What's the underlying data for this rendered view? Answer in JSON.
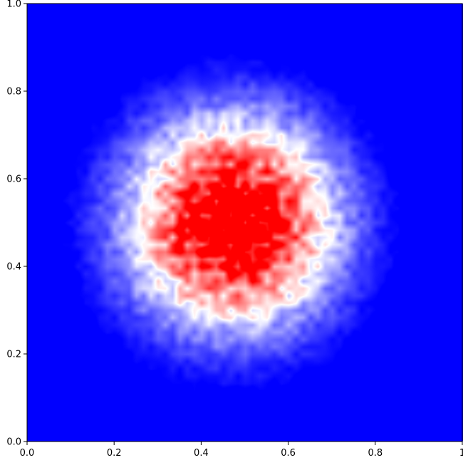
{
  "chart_data": {
    "type": "heatmap",
    "title": "",
    "xlabel": "",
    "ylabel": "",
    "xlim": [
      0,
      1
    ],
    "ylim": [
      0,
      1
    ],
    "x_ticks": [
      0.0,
      0.2,
      0.4,
      0.6,
      0.8,
      1.0
    ],
    "x_tick_labels": [
      "0.0",
      "0.2",
      "0.4",
      "0.6",
      "0.8",
      "1"
    ],
    "y_ticks": [
      0.0,
      0.2,
      0.4,
      0.6,
      0.8,
      1.0
    ],
    "y_tick_labels": [
      "0.0",
      "0.2",
      "0.4",
      "0.6",
      "0.8",
      "1.0"
    ],
    "grid": false,
    "colormap": "bwr",
    "colors": {
      "low": "#0000ff",
      "mid": "#ffffff",
      "high": "#ff0000"
    },
    "density_center": [
      0.47,
      0.5
    ],
    "density_spread": 0.17,
    "noise": "speckled"
  }
}
